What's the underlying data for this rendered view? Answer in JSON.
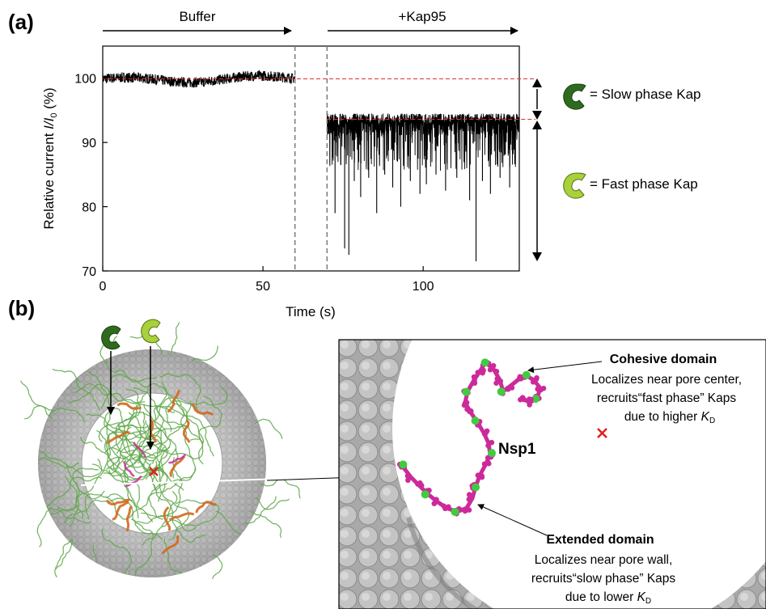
{
  "panel_a": {
    "label": "(a)",
    "condition_buffer": "Buffer",
    "condition_kap": "+Kap95",
    "legend_slow": "= Slow phase Kap",
    "legend_fast": "= Fast phase Kap",
    "colors": {
      "slow_kap": "#2f6b1e",
      "fast_kap": "#a8d13a",
      "trace": "#000000",
      "baseline": "#e03030"
    }
  },
  "chart_data": {
    "type": "line",
    "xlabel": "Time (s)",
    "ylabel_main": "Relative current ",
    "ylabel_italic": "I/I",
    "ylabel_sub": "0",
    "ylabel_unit": " (%)",
    "xlim": [
      0,
      130
    ],
    "ylim": [
      70,
      105
    ],
    "xticks": [
      0,
      50,
      100
    ],
    "yticks": [
      70,
      80,
      90,
      100
    ],
    "grid": false,
    "series": [
      {
        "segment": "buffer",
        "t_start": 0,
        "t_end": 60,
        "baseline": 99.9,
        "noise": 0.5
      },
      {
        "segment": "kap95",
        "t_start": 70,
        "t_end": 130,
        "baseline": 93.6,
        "upper_envelope": 94.5,
        "dips": [
          {
            "t": 72.5,
            "value": 79
          },
          {
            "t": 75.5,
            "value": 73.5
          },
          {
            "t": 76.8,
            "value": 72.5
          },
          {
            "t": 78.5,
            "value": 84
          },
          {
            "t": 80.5,
            "value": 81.5
          },
          {
            "t": 83,
            "value": 84.5
          },
          {
            "t": 85.5,
            "value": 79
          },
          {
            "t": 88,
            "value": 85
          },
          {
            "t": 90.5,
            "value": 83
          },
          {
            "t": 93,
            "value": 80
          },
          {
            "t": 96,
            "value": 84
          },
          {
            "t": 99,
            "value": 82
          },
          {
            "t": 101,
            "value": 83.5
          },
          {
            "t": 104,
            "value": 85
          },
          {
            "t": 107,
            "value": 82.5
          },
          {
            "t": 110.5,
            "value": 84.5
          },
          {
            "t": 114.5,
            "value": 81
          },
          {
            "t": 116.5,
            "value": 71.5
          },
          {
            "t": 118.5,
            "value": 84
          },
          {
            "t": 121,
            "value": 82
          },
          {
            "t": 124,
            "value": 84.5
          },
          {
            "t": 127,
            "value": 83
          }
        ]
      }
    ],
    "reference_lines": {
      "dashed_gray_x": [
        60,
        70
      ],
      "dashed_red_y": [
        99.9,
        93.6
      ]
    }
  },
  "panel_b": {
    "label": "(b)",
    "nsp1_label": "Nsp1",
    "cohesive_title": "Cohesive domain",
    "cohesive_line1": "Localizes near pore center,",
    "cohesive_line2": "recruits“fast phase” Kaps",
    "cohesive_line3": "due to higher ",
    "extended_title": "Extended domain",
    "extended_line1": "Localizes near pore wall,",
    "extended_line2": "recruits“slow phase” Kaps",
    "extended_line3": "due to lower ",
    "kd_symbol": "K",
    "kd_sub": "D",
    "colors": {
      "pore": "#b4b4b4",
      "fg_green": "#5fa84a",
      "fg_orange": "#d2691e",
      "nsp1_magenta": "#cc2a9a",
      "nsp1_green": "#3fcc3f",
      "center_mark": "#e02020"
    }
  }
}
